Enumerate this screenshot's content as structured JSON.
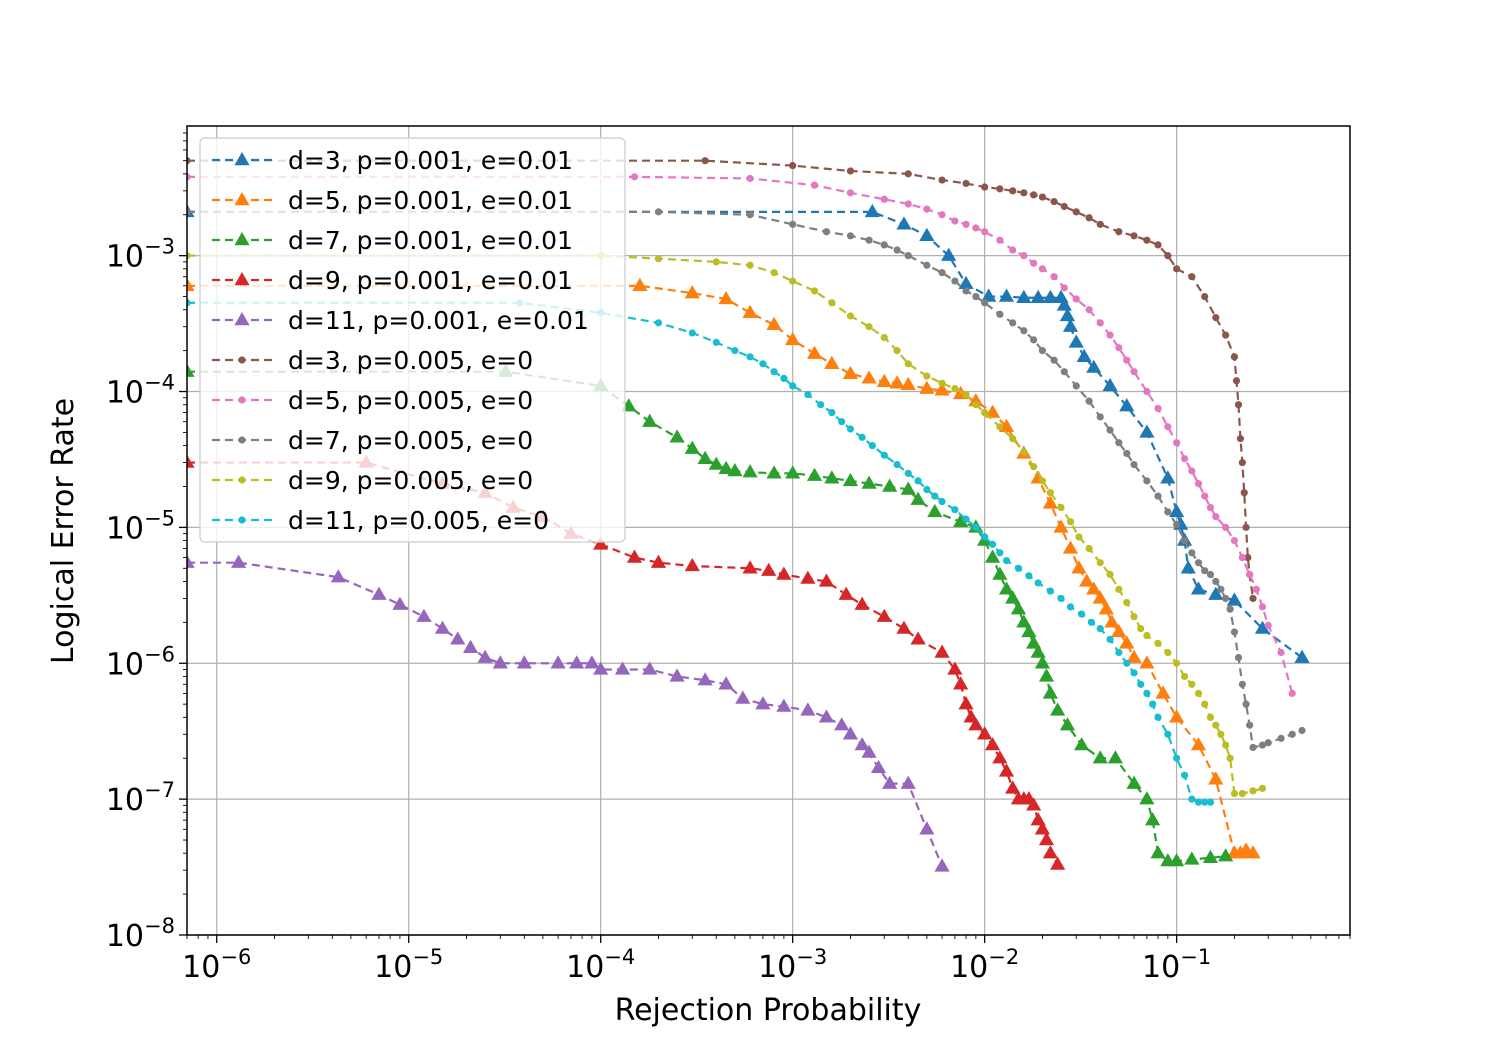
{
  "chart_data": {
    "type": "line",
    "title": "",
    "xlabel": "Rejection Probability",
    "ylabel": "Logical Error Rate",
    "xscale": "log",
    "yscale": "log",
    "xlim": [
      7e-07,
      0.8
    ],
    "ylim": [
      1e-08,
      0.009
    ],
    "grid": true,
    "legend_position": "top-left",
    "x_ticks": [
      {
        "value": 1e-06,
        "label": "10^-6"
      },
      {
        "value": 1e-05,
        "label": "10^-5"
      },
      {
        "value": 0.0001,
        "label": "10^-4"
      },
      {
        "value": 0.001,
        "label": "10^-3"
      },
      {
        "value": 0.01,
        "label": "10^-2"
      },
      {
        "value": 0.1,
        "label": "10^-1"
      }
    ],
    "y_ticks": [
      {
        "value": 1e-08,
        "label": "10^-8"
      },
      {
        "value": 1e-07,
        "label": "10^-7"
      },
      {
        "value": 1e-06,
        "label": "10^-6"
      },
      {
        "value": 1e-05,
        "label": "10^-5"
      },
      {
        "value": 0.0001,
        "label": "10^-4"
      },
      {
        "value": 0.001,
        "label": "10^-3"
      }
    ],
    "series": [
      {
        "name": "d=3, p=0.001, e=0.01",
        "color": "#1f77b4",
        "marker": "triangle",
        "x": [
          7e-07,
          0.0026,
          0.0038,
          0.005,
          0.0065,
          0.008,
          0.0105,
          0.013,
          0.016,
          0.019,
          0.022,
          0.025,
          0.026,
          0.027,
          0.028,
          0.03,
          0.033,
          0.037,
          0.045,
          0.055,
          0.07,
          0.09,
          0.1,
          0.105,
          0.11,
          0.115,
          0.13,
          0.16,
          0.2,
          0.28,
          0.45
        ],
        "y": [
          0.0021,
          0.0021,
          0.0017,
          0.0014,
          0.001,
          0.00062,
          0.0005,
          0.0005,
          0.00049,
          0.00049,
          0.00049,
          0.00049,
          0.00043,
          0.00036,
          0.0003,
          0.00023,
          0.00018,
          0.00015,
          0.00011,
          7.8e-05,
          5e-05,
          2.3e-05,
          1.3e-05,
          1.05e-05,
          8e-06,
          5e-06,
          3.5e-06,
          3.2e-06,
          2.9e-06,
          1.8e-06,
          1.1e-06
        ]
      },
      {
        "name": "d=5, p=0.001, e=0.01",
        "color": "#ff7f0e",
        "marker": "triangle",
        "x": [
          7e-07,
          0.00016,
          0.0003,
          0.00045,
          0.0006,
          0.0008,
          0.001,
          0.0013,
          0.0016,
          0.002,
          0.0025,
          0.003,
          0.0035,
          0.004,
          0.005,
          0.006,
          0.0075,
          0.009,
          0.011,
          0.013,
          0.016,
          0.019,
          0.022,
          0.025,
          0.028,
          0.031,
          0.034,
          0.037,
          0.04,
          0.043,
          0.046,
          0.05,
          0.055,
          0.06,
          0.07,
          0.085,
          0.1,
          0.13,
          0.16,
          0.2,
          0.215,
          0.23,
          0.25
        ],
        "y": [
          0.0006,
          0.0006,
          0.00053,
          0.00048,
          0.00038,
          0.00031,
          0.00024,
          0.00019,
          0.00016,
          0.000135,
          0.000125,
          0.000118,
          0.000115,
          0.000112,
          0.000105,
          0.000102,
          9.6e-05,
          8.5e-05,
          7e-05,
          5.5e-05,
          3.5e-05,
          2.3e-05,
          1.5e-05,
          1e-05,
          7e-06,
          5e-06,
          4e-06,
          3.5e-06,
          3e-06,
          2.5e-06,
          2e-06,
          1.7e-06,
          1.4e-06,
          1.1e-06,
          1e-06,
          6e-07,
          4e-07,
          2.5e-07,
          1.4e-07,
          4e-08,
          4e-08,
          4.2e-08,
          4e-08
        ]
      },
      {
        "name": "d=7, p=0.001, e=0.01",
        "color": "#2ca02c",
        "marker": "triangle",
        "x": [
          7e-07,
          3.2e-05,
          0.0001,
          0.00014,
          0.00018,
          0.00025,
          0.0003,
          0.00035,
          0.0004,
          0.00045,
          0.0005,
          0.0006,
          0.0008,
          0.001,
          0.0013,
          0.0016,
          0.002,
          0.0025,
          0.0032,
          0.004,
          0.0045,
          0.0055,
          0.0075,
          0.009,
          0.01,
          0.011,
          0.012,
          0.013,
          0.014,
          0.015,
          0.016,
          0.017,
          0.018,
          0.019,
          0.02,
          0.021,
          0.022,
          0.024,
          0.027,
          0.032,
          0.04,
          0.048,
          0.06,
          0.07,
          0.075,
          0.08,
          0.09,
          0.1,
          0.12,
          0.15,
          0.18
        ],
        "y": [
          0.00014,
          0.00014,
          0.00011,
          7.8e-05,
          6e-05,
          4.6e-05,
          3.8e-05,
          3.2e-05,
          2.9e-05,
          2.7e-05,
          2.6e-05,
          2.55e-05,
          2.5e-05,
          2.5e-05,
          2.4e-05,
          2.3e-05,
          2.2e-05,
          2.1e-05,
          2e-05,
          1.9e-05,
          1.6e-05,
          1.3e-05,
          1.1e-05,
          1e-05,
          8e-06,
          6e-06,
          4.5e-06,
          3.5e-06,
          3e-06,
          2.5e-06,
          2e-06,
          1.7e-06,
          1.4e-06,
          1.2e-06,
          1e-06,
          8e-07,
          6e-07,
          4.5e-07,
          3.5e-07,
          2.5e-07,
          2e-07,
          2e-07,
          1.3e-07,
          1e-07,
          7e-08,
          4e-08,
          3.5e-08,
          3.5e-08,
          3.6e-08,
          3.7e-08,
          3.8e-08
        ]
      },
      {
        "name": "d=9, p=0.001, e=0.01",
        "color": "#d62728",
        "marker": "triangle",
        "x": [
          7e-07,
          6e-06,
          1.5e-05,
          2.5e-05,
          3.5e-05,
          5e-05,
          7e-05,
          0.0001,
          0.00015,
          0.0002,
          0.0003,
          0.0006,
          0.00075,
          0.0009,
          0.0012,
          0.0015,
          0.0019,
          0.0023,
          0.003,
          0.0038,
          0.0045,
          0.006,
          0.007,
          0.0075,
          0.008,
          0.0085,
          0.009,
          0.01,
          0.011,
          0.012,
          0.013,
          0.014,
          0.015,
          0.016,
          0.017,
          0.018,
          0.019,
          0.02,
          0.021,
          0.022,
          0.024
        ],
        "y": [
          3e-05,
          3e-05,
          2.1e-05,
          1.8e-05,
          1.4e-05,
          1.2e-05,
          9e-06,
          7.5e-06,
          6e-06,
          5.5e-06,
          5.2e-06,
          5e-06,
          4.8e-06,
          4.5e-06,
          4.2e-06,
          4e-06,
          3.2e-06,
          2.7e-06,
          2.2e-06,
          1.8e-06,
          1.5e-06,
          1.2e-06,
          9e-07,
          7e-07,
          5e-07,
          4e-07,
          3.5e-07,
          3e-07,
          2.5e-07,
          2e-07,
          1.6e-07,
          1.2e-07,
          1e-07,
          1e-07,
          1e-07,
          9e-08,
          7e-08,
          6e-08,
          5e-08,
          4e-08,
          3.3e-08
        ]
      },
      {
        "name": "d=11, p=0.001, e=0.01",
        "color": "#9467bd",
        "marker": "triangle",
        "x": [
          7e-07,
          1.3e-06,
          4.3e-06,
          7e-06,
          9e-06,
          1.2e-05,
          1.5e-05,
          1.8e-05,
          2.1e-05,
          2.5e-05,
          3e-05,
          4e-05,
          6e-05,
          7.5e-05,
          9e-05,
          0.0001,
          0.00013,
          0.00018,
          0.00025,
          0.00035,
          0.00045,
          0.00055,
          0.0007,
          0.0009,
          0.0012,
          0.0015,
          0.0018,
          0.002,
          0.0023,
          0.0025,
          0.0028,
          0.0032,
          0.004,
          0.005,
          0.006
        ],
        "y": [
          5.5e-06,
          5.5e-06,
          4.3e-06,
          3.2e-06,
          2.7e-06,
          2.2e-06,
          1.8e-06,
          1.5e-06,
          1.3e-06,
          1.1e-06,
          1e-06,
          1e-06,
          1e-06,
          1e-06,
          1e-06,
          9e-07,
          9e-07,
          9e-07,
          8e-07,
          7.5e-07,
          7e-07,
          5.5e-07,
          5e-07,
          4.8e-07,
          4.5e-07,
          4e-07,
          3.5e-07,
          3e-07,
          2.5e-07,
          2.2e-07,
          1.7e-07,
          1.3e-07,
          1.3e-07,
          6e-08,
          3.2e-08
        ]
      },
      {
        "name": "d=3, p=0.005, e=0",
        "color": "#8c564b",
        "marker": "dot",
        "x": [
          7e-07,
          0.00035,
          0.001,
          0.002,
          0.004,
          0.006,
          0.008,
          0.01,
          0.012,
          0.014,
          0.016,
          0.018,
          0.02,
          0.023,
          0.026,
          0.03,
          0.035,
          0.04,
          0.05,
          0.06,
          0.07,
          0.08,
          0.09,
          0.1,
          0.12,
          0.14,
          0.16,
          0.18,
          0.2,
          0.205,
          0.21,
          0.215,
          0.22,
          0.225,
          0.23,
          0.235,
          0.24,
          0.25
        ],
        "y": [
          0.005,
          0.005,
          0.0046,
          0.0042,
          0.004,
          0.0036,
          0.0034,
          0.0032,
          0.0031,
          0.003,
          0.0029,
          0.0028,
          0.0027,
          0.0025,
          0.0023,
          0.0021,
          0.0019,
          0.0017,
          0.0015,
          0.0014,
          0.0013,
          0.0012,
          0.001,
          0.0008,
          0.0007,
          0.0005,
          0.00035,
          0.00026,
          0.00018,
          0.00012,
          8e-05,
          4.5e-05,
          3e-05,
          1.8e-05,
          1e-05,
          6e-06,
          4.5e-06,
          3e-06
        ]
      },
      {
        "name": "d=5, p=0.005, e=0",
        "color": "#e377c2",
        "marker": "dot",
        "x": [
          7e-07,
          0.00015,
          0.0006,
          0.0013,
          0.002,
          0.003,
          0.004,
          0.005,
          0.006,
          0.007,
          0.008,
          0.009,
          0.01,
          0.012,
          0.014,
          0.016,
          0.018,
          0.02,
          0.023,
          0.026,
          0.03,
          0.035,
          0.04,
          0.045,
          0.05,
          0.055,
          0.06,
          0.07,
          0.08,
          0.09,
          0.1,
          0.11,
          0.12,
          0.13,
          0.14,
          0.15,
          0.16,
          0.18,
          0.2,
          0.22,
          0.24,
          0.26,
          0.28,
          0.3,
          0.35,
          0.4
        ],
        "y": [
          0.0038,
          0.0038,
          0.0037,
          0.0033,
          0.0029,
          0.0026,
          0.0024,
          0.0022,
          0.002,
          0.0018,
          0.0017,
          0.0016,
          0.0015,
          0.0013,
          0.0011,
          0.001,
          0.00088,
          0.0008,
          0.0007,
          0.00058,
          0.00048,
          0.0004,
          0.00032,
          0.00026,
          0.00021,
          0.00017,
          0.00014,
          0.0001,
          7.5e-05,
          5.5e-05,
          4.2e-05,
          3.2e-05,
          2.6e-05,
          2.1e-05,
          1.7e-05,
          1.4e-05,
          1.2e-05,
          1e-05,
          8e-06,
          6e-06,
          4.5e-06,
          3.5e-06,
          2.6e-06,
          1.9e-06,
          1.2e-06,
          6e-07
        ]
      },
      {
        "name": "d=7, p=0.005, e=0",
        "color": "#7f7f7f",
        "marker": "dot",
        "x": [
          7e-07,
          0.0002,
          0.0006,
          0.001,
          0.0015,
          0.002,
          0.0025,
          0.003,
          0.0035,
          0.004,
          0.005,
          0.006,
          0.007,
          0.008,
          0.009,
          0.01,
          0.012,
          0.014,
          0.016,
          0.018,
          0.02,
          0.023,
          0.026,
          0.03,
          0.035,
          0.04,
          0.045,
          0.05,
          0.055,
          0.06,
          0.07,
          0.08,
          0.09,
          0.1,
          0.11,
          0.12,
          0.13,
          0.14,
          0.15,
          0.16,
          0.17,
          0.18,
          0.19,
          0.2,
          0.21,
          0.22,
          0.23,
          0.24,
          0.25,
          0.28,
          0.3,
          0.35,
          0.4,
          0.45
        ],
        "y": [
          0.0021,
          0.0021,
          0.002,
          0.0017,
          0.0015,
          0.0014,
          0.0013,
          0.0012,
          0.0011,
          0.001,
          0.00085,
          0.00075,
          0.00065,
          0.00055,
          0.0005,
          0.00045,
          0.00037,
          0.00032,
          0.00028,
          0.00024,
          0.0002,
          0.00017,
          0.00014,
          0.00011,
          8.5e-05,
          6.5e-05,
          5.2e-05,
          4.2e-05,
          3.5e-05,
          2.9e-05,
          2.2e-05,
          1.7e-05,
          1.3e-05,
          1.05e-05,
          8e-06,
          6.5e-06,
          5.5e-06,
          4.8e-06,
          4.5e-06,
          4e-06,
          3.5e-06,
          3e-06,
          2.5e-06,
          1.7e-06,
          1.1e-06,
          7e-07,
          5e-07,
          3.5e-07,
          2.4e-07,
          2.5e-07,
          2.6e-07,
          2.8e-07,
          3e-07,
          3.2e-07
        ]
      },
      {
        "name": "d=9, p=0.005, e=0",
        "color": "#bcbd22",
        "marker": "dot",
        "x": [
          7e-07,
          0.0001,
          0.0002,
          0.0004,
          0.0006,
          0.0008,
          0.001,
          0.0013,
          0.0016,
          0.002,
          0.0025,
          0.003,
          0.0035,
          0.004,
          0.005,
          0.006,
          0.007,
          0.008,
          0.009,
          0.01,
          0.012,
          0.014,
          0.016,
          0.018,
          0.02,
          0.022,
          0.025,
          0.028,
          0.031,
          0.035,
          0.04,
          0.045,
          0.05,
          0.055,
          0.06,
          0.065,
          0.07,
          0.08,
          0.09,
          0.1,
          0.11,
          0.12,
          0.13,
          0.14,
          0.15,
          0.16,
          0.17,
          0.18,
          0.19,
          0.2,
          0.22,
          0.25,
          0.28
        ],
        "y": [
          0.001,
          0.001,
          0.00095,
          0.0009,
          0.00085,
          0.00075,
          0.00065,
          0.00055,
          0.00045,
          0.00036,
          0.0003,
          0.00025,
          0.0002,
          0.00016,
          0.00013,
          0.000115,
          0.000105,
          9.5e-05,
          8e-05,
          7e-05,
          5.5e-05,
          4.5e-05,
          3.6e-05,
          2.8e-05,
          2.2e-05,
          1.8e-05,
          1.4e-05,
          1.1e-05,
          8.5e-06,
          7e-06,
          5.5e-06,
          4.5e-06,
          3.5e-06,
          2.8e-06,
          2.2e-06,
          1.8e-06,
          1.6e-06,
          1.4e-06,
          1.2e-06,
          1e-06,
          8e-07,
          7e-07,
          6e-07,
          5e-07,
          4e-07,
          3.5e-07,
          3e-07,
          2.5e-07,
          2e-07,
          1.1e-07,
          1.1e-07,
          1.15e-07,
          1.2e-07
        ]
      },
      {
        "name": "d=11, p=0.005, e=0",
        "color": "#17becf",
        "marker": "dot",
        "x": [
          7e-07,
          3.8e-05,
          0.0001,
          0.0002,
          0.0003,
          0.0004,
          0.0005,
          0.0006,
          0.0007,
          0.0008,
          0.0009,
          0.001,
          0.0012,
          0.0014,
          0.0016,
          0.0018,
          0.002,
          0.0023,
          0.0026,
          0.003,
          0.0035,
          0.004,
          0.0045,
          0.005,
          0.0055,
          0.006,
          0.007,
          0.008,
          0.009,
          0.01,
          0.011,
          0.012,
          0.013,
          0.015,
          0.017,
          0.019,
          0.022,
          0.025,
          0.028,
          0.032,
          0.036,
          0.04,
          0.045,
          0.05,
          0.055,
          0.06,
          0.065,
          0.07,
          0.075,
          0.08,
          0.09,
          0.1,
          0.11,
          0.12,
          0.13,
          0.14,
          0.15
        ],
        "y": [
          0.00045,
          0.00045,
          0.00038,
          0.00032,
          0.00027,
          0.00023,
          0.0002,
          0.00018,
          0.00016,
          0.00014,
          0.000125,
          0.00011,
          9.5e-05,
          8e-05,
          7e-05,
          6e-05,
          5.3e-05,
          4.6e-05,
          4e-05,
          3.4e-05,
          2.9e-05,
          2.5e-05,
          2.2e-05,
          1.9e-05,
          1.7e-05,
          1.55e-05,
          1.35e-05,
          1.15e-05,
          1e-05,
          8.5e-06,
          7.5e-06,
          6.5e-06,
          5.7e-06,
          5e-06,
          4.4e-06,
          3.9e-06,
          3.4e-06,
          3e-06,
          2.6e-06,
          2.3e-06,
          2e-06,
          1.8e-06,
          1.5e-06,
          1.2e-06,
          1e-06,
          8.5e-07,
          7e-07,
          6e-07,
          5e-07,
          4e-07,
          3e-07,
          2e-07,
          1.5e-07,
          1e-07,
          9.5e-08,
          9.5e-08,
          9.5e-08
        ]
      }
    ]
  }
}
